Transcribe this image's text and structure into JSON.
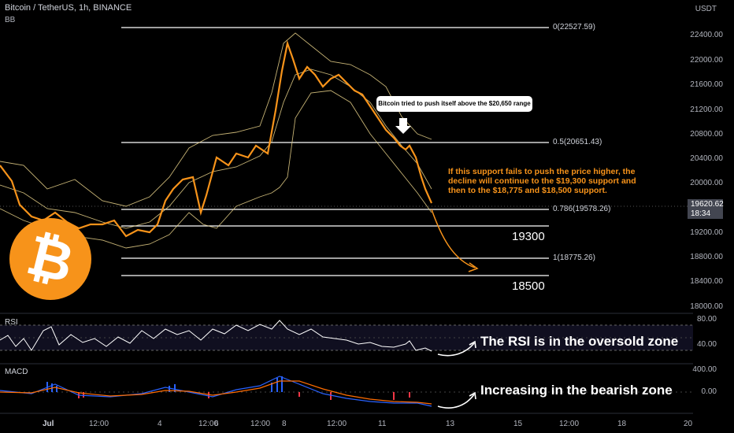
{
  "header": {
    "title": "Bitcoin / TetherUS, 1h, BINANCE",
    "indicator": "BB"
  },
  "price_axis": {
    "unit": "USDT",
    "ticks": [
      "22400.00",
      "22000.00",
      "21600.00",
      "21200.00",
      "20800.00",
      "20400.00",
      "20000.00",
      "19200.00",
      "18800.00",
      "18400.00",
      "18000.00"
    ],
    "current_price": "19620.62",
    "countdown": "18:34"
  },
  "fib_levels": [
    "0(22527.59)",
    "0.5(20651.43)",
    "0.786(19578.26)",
    "1(18775.26)"
  ],
  "support_labels": [
    "19300",
    "18500"
  ],
  "callout": "Bitcoin tried to push itself above the $20,650 range",
  "note": "If this support fails to push the price higher, the decline will continue to the $19,300 support and then to the $18,775 and $18,500 support.",
  "rsi": {
    "title": "RSI",
    "ticks": [
      "80.00",
      "40.00"
    ],
    "annotation": "The RSI is in the oversold zone"
  },
  "macd": {
    "title": "MACD",
    "ticks": [
      "400.00",
      "0.00"
    ],
    "annotation": "Increasing in the bearish zone"
  },
  "time_axis": [
    "Jul",
    "12:00",
    "4",
    "12:00",
    "6",
    "12:00",
    "8",
    "12:00",
    "11",
    "13",
    "15",
    "12:00",
    "18",
    "20"
  ],
  "colors": {
    "candle": "#f7931a",
    "bb": "#e9d38a",
    "fib": "#ffffff",
    "rsi": "#ffffff",
    "macd_line": "#2962ff",
    "signal_line": "#ff6d00"
  },
  "logo_icon": "bitcoin-logo-icon"
}
